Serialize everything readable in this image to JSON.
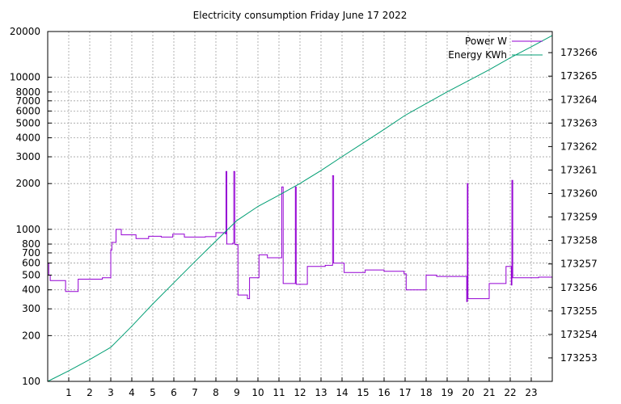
{
  "chart_data": {
    "type": "line",
    "title": "Electricity consumption Friday June 17 2022",
    "xlabel": "",
    "ylabel": "",
    "y2label": "",
    "xlim": [
      0,
      24
    ],
    "ylim": [
      100,
      20000
    ],
    "y_scale": "log",
    "y2lim": [
      173252.0,
      173266.9
    ],
    "grid": true,
    "legend_position": "top-right",
    "x_ticks": [
      1,
      2,
      3,
      4,
      5,
      6,
      7,
      8,
      9,
      10,
      11,
      12,
      13,
      14,
      15,
      16,
      17,
      18,
      19,
      20,
      21,
      22,
      23
    ],
    "y_ticks": [
      {
        "value": 100,
        "label": "100"
      },
      {
        "value": 200,
        "label": "200"
      },
      {
        "value": 300,
        "label": "300"
      },
      {
        "value": 400,
        "label": "400"
      },
      {
        "value": 500,
        "label": "500"
      },
      {
        "value": 600,
        "label": "600"
      },
      {
        "value": 700,
        "label": "700"
      },
      {
        "value": 800,
        "label": "800"
      },
      {
        "value": 1000,
        "label": "1000"
      },
      {
        "value": 2000,
        "label": "2000"
      },
      {
        "value": 3000,
        "label": "3000"
      },
      {
        "value": 4000,
        "label": "4000"
      },
      {
        "value": 5000,
        "label": "5000"
      },
      {
        "value": 6000,
        "label": "6000"
      },
      {
        "value": 7000,
        "label": "7000"
      },
      {
        "value": 8000,
        "label": "8000"
      },
      {
        "value": 10000,
        "label": "10000"
      },
      {
        "value": 20000,
        "label": "20000"
      }
    ],
    "y2_ticks": [
      173253,
      173254,
      173255,
      173256,
      173257,
      173258,
      173259,
      173260,
      173261,
      173262,
      173263,
      173264,
      173265,
      173266
    ],
    "series": [
      {
        "name": "Power W",
        "axis": "y",
        "color": "#9400d3",
        "step": true,
        "x": [
          0,
          0.05,
          0.12,
          0.85,
          1.45,
          2.0,
          2.6,
          3.0,
          3.05,
          3.25,
          3.5,
          4.2,
          4.8,
          5.4,
          5.95,
          6.5,
          7.5,
          8.0,
          8.45,
          8.48,
          8.52,
          8.8,
          8.85,
          8.9,
          9.05,
          9.5,
          9.6,
          10.05,
          10.45,
          11.1,
          11.13,
          11.2,
          11.75,
          11.78,
          11.82,
          12.35,
          13.2,
          13.55,
          13.6,
          13.65,
          14.1,
          15.1,
          16.0,
          16.95,
          17.05,
          17.6,
          18.0,
          18.5,
          19.3,
          19.93,
          19.96,
          19.99,
          20.5,
          21.0,
          21.8,
          22.05,
          22.08,
          22.12,
          23.35,
          24.0
        ],
        "y": [
          600,
          500,
          460,
          390,
          470,
          470,
          480,
          730,
          820,
          1000,
          920,
          870,
          900,
          890,
          930,
          890,
          895,
          950,
          935,
          2400,
          800,
          810,
          2400,
          795,
          370,
          350,
          480,
          680,
          650,
          650,
          1900,
          440,
          440,
          1900,
          435,
          570,
          580,
          2250,
          600,
          600,
          520,
          540,
          530,
          510,
          400,
          400,
          500,
          490,
          490,
          335,
          2000,
          350,
          350,
          440,
          570,
          430,
          2100,
          480,
          485,
          500
        ]
      },
      {
        "name": "Energy KWh",
        "axis": "y2",
        "color": "#009e73",
        "step": false,
        "x": [
          0,
          1,
          2,
          3,
          4,
          5,
          6,
          7,
          8,
          9,
          10,
          11,
          12,
          13,
          14,
          15,
          16,
          17,
          18,
          19,
          20,
          21,
          22,
          23,
          24
        ],
        "y": [
          173252.0,
          173252.45,
          173252.93,
          173253.45,
          173254.35,
          173255.3,
          173256.2,
          173257.1,
          173257.98,
          173258.85,
          173259.45,
          173259.93,
          173260.43,
          173260.98,
          173261.57,
          173262.15,
          173262.73,
          173263.33,
          173263.83,
          173264.33,
          173264.8,
          173265.27,
          173265.78,
          173266.25,
          173266.73
        ]
      }
    ]
  }
}
